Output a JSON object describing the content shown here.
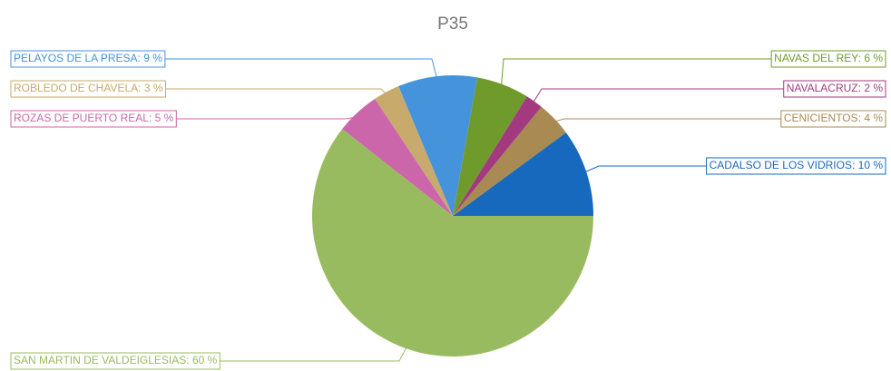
{
  "chart_data": {
    "type": "pie",
    "title": "P35",
    "categories": [
      "CADALSO DE LOS VIDRIOS",
      "CENICIENTOS",
      "NAVALACRUZ",
      "NAVAS DEL REY",
      "PELAYOS DE LA PRESA",
      "ROBLEDO DE CHAVELA",
      "ROZAS DE PUERTO REAL",
      "SAN MARTIN DE VALDEIGLESIAS"
    ],
    "values": [
      10,
      4,
      2,
      6,
      9,
      3,
      5,
      60
    ],
    "value_labels": [
      "10 %",
      "4 %",
      "2 %",
      "6 %",
      "9 %",
      "3 %",
      "5 %",
      "60 %"
    ],
    "colors": [
      "#1769be",
      "#a88a52",
      "#a33a80",
      "#6f9b2c",
      "#4593db",
      "#c8aa6c",
      "#cc66aa",
      "#99bb5f"
    ]
  }
}
